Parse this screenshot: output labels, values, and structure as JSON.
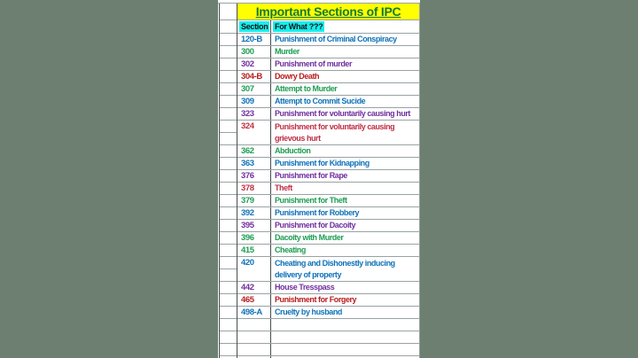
{
  "palette": {
    "bg_green": "#6d7f71",
    "yellow": "#ffff00",
    "cyan": "#17eded",
    "title_green": "#157a33",
    "grid_light": "#9aa2a4",
    "grid_dark": "#474e50",
    "blue": "#0f72b8",
    "green": "#1d9e52",
    "purple": "#70309f",
    "dark_red": "#b81d1d",
    "red": "#c02f45"
  },
  "table": {
    "title": "Important Sections of IPC",
    "headers": {
      "section": "Section",
      "for_what": "For What ???"
    },
    "rows": [
      {
        "section": "120-B",
        "text": "Punishment of Criminal Conspiracy",
        "color": "blue"
      },
      {
        "section": "300",
        "text": "Murder",
        "color": "green"
      },
      {
        "section": "302",
        "text": "Punishment of murder",
        "color": "purple"
      },
      {
        "section": "304-B",
        "text": "Dowry Death",
        "color": "dark_red"
      },
      {
        "section": "307",
        "text": "Attempt to Murder",
        "color": "green"
      },
      {
        "section": "309",
        "text": "Attempt to Commit Sucide",
        "color": "blue"
      },
      {
        "section": "323",
        "text": "Punishment for voluntarily causing hurt",
        "color": "purple"
      },
      {
        "section": "324",
        "text": "Punishment for voluntarily causing grievous hurt",
        "color": "red",
        "tall": true
      },
      {
        "section": "362",
        "text": "Abduction",
        "color": "green"
      },
      {
        "section": "363",
        "text": "Punishment for Kidnapping",
        "color": "blue"
      },
      {
        "section": "376",
        "text": "Punishment for Rape",
        "color": "purple"
      },
      {
        "section": "378",
        "text": "Theft",
        "color": "red"
      },
      {
        "section": "379",
        "text": "Punishment for Theft",
        "color": "green"
      },
      {
        "section": "392",
        "text": "Punishment for Robbery",
        "color": "blue"
      },
      {
        "section": "395",
        "text": "Punishment for Dacoity",
        "color": "purple"
      },
      {
        "section": "396",
        "text": "Dacoity with Murder",
        "color": "green"
      },
      {
        "section": "415",
        "text": "Cheating",
        "color": "green"
      },
      {
        "section": "420",
        "text": "Cheating and Dishonestly inducing delivery of property",
        "color": "blue",
        "tall": true
      },
      {
        "section": "442",
        "text": "House Tresspass",
        "color": "purple"
      },
      {
        "section": "465",
        "text": "Punishment for Forgery",
        "color": "dark_red"
      },
      {
        "section": "498-A",
        "text": "Cruelty by husband",
        "color": "blue"
      }
    ],
    "empty_rows": 4
  }
}
